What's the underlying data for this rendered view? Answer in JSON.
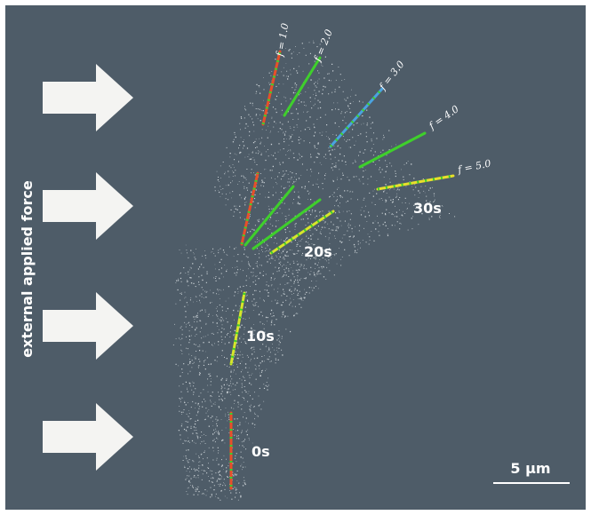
{
  "side_label": "external applied force",
  "force_labels": [
    "f = 1.0",
    "f = 2.0",
    "f = 3.0",
    "f = 4.0",
    "f = 5.0"
  ],
  "time_labels": [
    "0s",
    "10s",
    "20s",
    "30s"
  ],
  "scale_bar": "5 µm"
}
